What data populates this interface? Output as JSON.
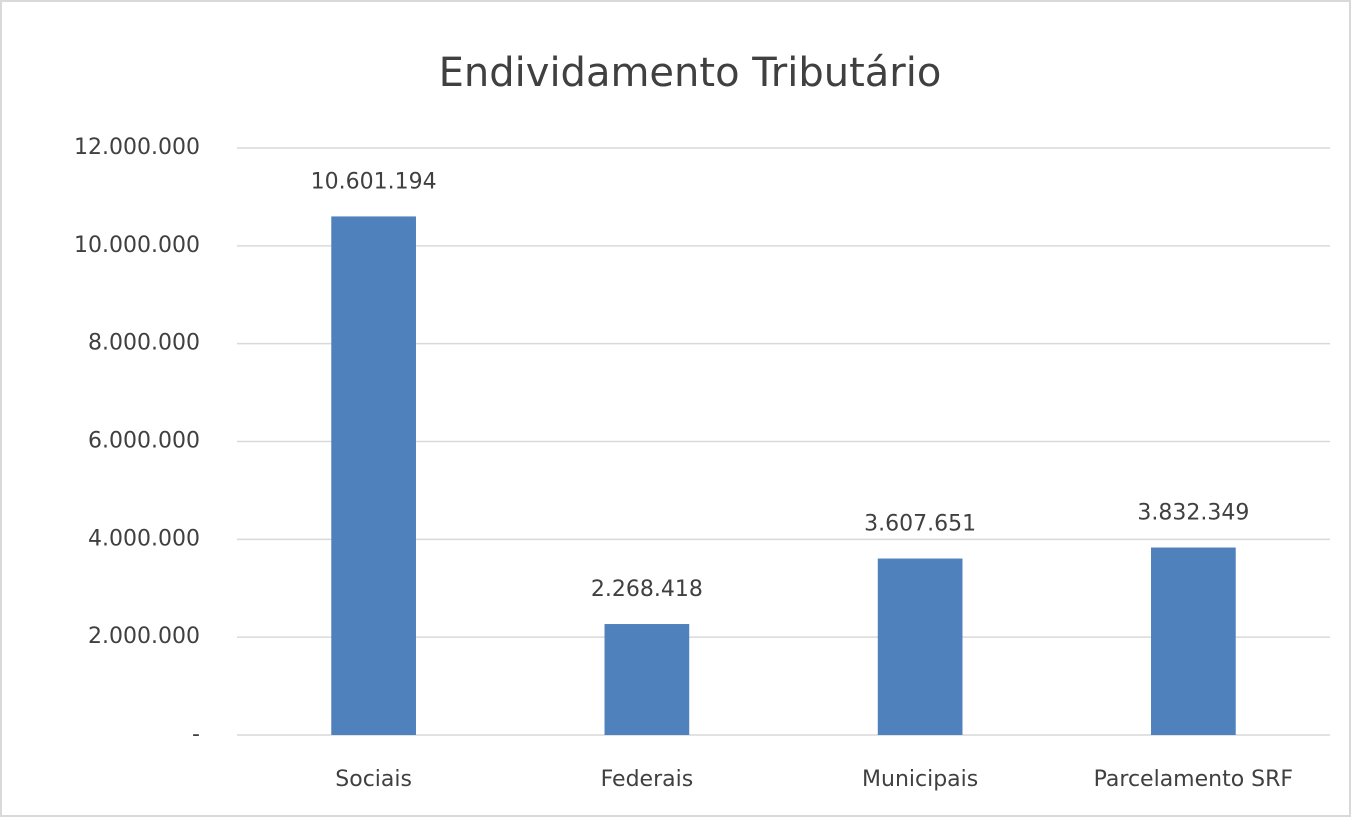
{
  "chart_data": {
    "type": "bar",
    "title": "Endividamento Tributário",
    "categories": [
      "Sociais",
      "Federais",
      "Municipais",
      "Parcelamento SRF"
    ],
    "values": [
      10601194,
      2268418,
      3607651,
      3832349
    ],
    "value_labels": [
      "10.601.194",
      "2.268.418",
      "3.607.651",
      "3.832.349"
    ],
    "color": "#4f81bd",
    "ylim": [
      0,
      12000000
    ],
    "yticks": [
      {
        "value": 0,
        "label": "-"
      },
      {
        "value": 2000000,
        "label": "2.000.000"
      },
      {
        "value": 4000000,
        "label": "4.000.000"
      },
      {
        "value": 6000000,
        "label": "6.000.000"
      },
      {
        "value": 8000000,
        "label": "8.000.000"
      },
      {
        "value": 10000000,
        "label": "10.000.000"
      },
      {
        "value": 12000000,
        "label": "12.000.000"
      }
    ],
    "grid": true
  }
}
